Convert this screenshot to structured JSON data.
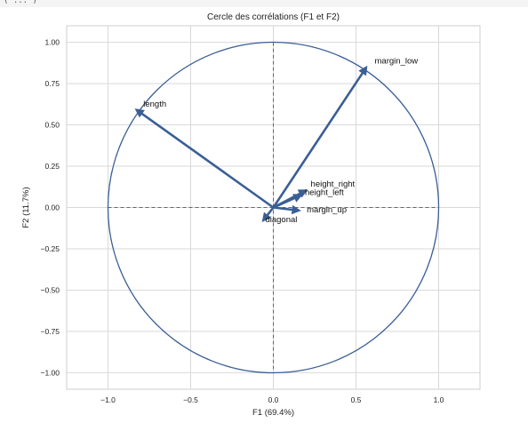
{
  "top_strip": {
    "text": "( ... )"
  },
  "chart_data": {
    "type": "scatter",
    "subtype": "correlation-circle",
    "title": "Cercle des corrélations (F1 et F2)",
    "xlabel": "F1 (69.4%)",
    "ylabel": "F2 (11.7%)",
    "xlim": [
      -1.25,
      1.25
    ],
    "ylim": [
      -1.1,
      1.1
    ],
    "xticks": [
      -1.0,
      -0.5,
      0.0,
      0.5,
      1.0
    ],
    "xtick_labels": [
      "−1.0",
      "−0.5",
      "0.0",
      "0.5",
      "1.0"
    ],
    "yticks": [
      1.0,
      0.75,
      0.5,
      0.25,
      0.0,
      -0.25,
      -0.5,
      -0.75,
      -1.0
    ],
    "ytick_labels": [
      "1.00",
      "0.75",
      "0.50",
      "0.25",
      "0.00",
      "−0.25",
      "−0.50",
      "−0.75",
      "−1.00"
    ],
    "grid": true,
    "unit_circle": true,
    "arrow_color": "#3a5f95",
    "circle_color": "#3a5f95",
    "variables": [
      {
        "name": "length",
        "x": -0.84,
        "y": 0.6
      },
      {
        "name": "margin_low",
        "x": 0.57,
        "y": 0.86
      },
      {
        "name": "height_right",
        "x": 0.21,
        "y": 0.11
      },
      {
        "name": "height_left",
        "x": 0.18,
        "y": 0.08
      },
      {
        "name": "margin_up",
        "x": 0.17,
        "y": -0.02
      },
      {
        "name": "diagonal",
        "x": -0.07,
        "y": -0.09
      }
    ]
  }
}
